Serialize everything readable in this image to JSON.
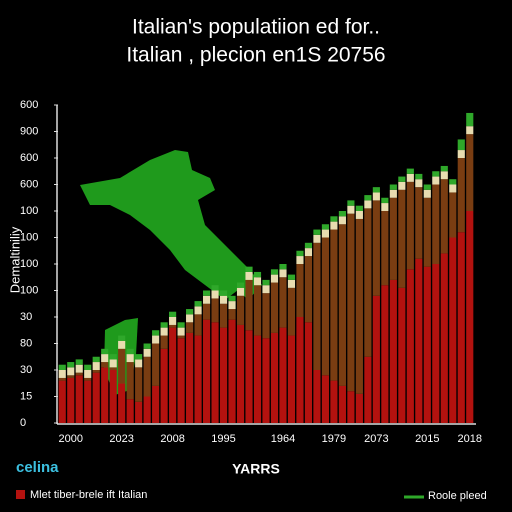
{
  "chart_data": {
    "type": "stacked_bar",
    "title": [
      "Italian's populatiion ed for..",
      "Italian , plecion en1S 20756"
    ],
    "ylabel": "Demaltiniliy",
    "xlabel": "YARRS",
    "logo": "celina",
    "ylim": [
      0,
      12
    ],
    "yticks": [
      0,
      {
        "value": 1,
        "label": "15"
      },
      {
        "value": 2,
        "label": "30"
      },
      {
        "value": 3,
        "label": "80"
      },
      {
        "value": 4,
        "label": "30"
      },
      {
        "value": 5,
        "label": "100"
      },
      {
        "value": 6,
        "label": "100"
      },
      {
        "value": 7,
        "label": "100"
      },
      {
        "value": 8,
        "label": "100"
      },
      {
        "value": 9,
        "label": "600"
      },
      {
        "value": 10,
        "label": "600"
      },
      {
        "value": 11,
        "label": "900"
      },
      {
        "value": 12,
        "label": "600"
      }
    ],
    "categories": [
      null,
      "2000",
      null,
      null,
      null,
      null,
      null,
      "2023",
      null,
      null,
      null,
      null,
      null,
      "2008",
      null,
      null,
      null,
      null,
      null,
      "1995",
      null,
      null,
      null,
      null,
      null,
      null,
      "1964",
      null,
      null,
      null,
      null,
      null,
      "1979",
      null,
      null,
      null,
      null,
      "2073",
      null,
      null,
      null,
      null,
      null,
      "2015",
      null,
      null,
      null,
      null,
      "2018"
    ],
    "series": [
      {
        "name": "Mlet tiber-brele ift Italian",
        "color": "#b3120f",
        "values": [
          1.6,
          1.7,
          1.8,
          1.6,
          1.9,
          2.1,
          2.0,
          1.5,
          0.9,
          0.8,
          1.0,
          1.4,
          2.8,
          3.6,
          3.2,
          3.4,
          3.3,
          3.9,
          3.8,
          3.6,
          3.9,
          3.7,
          3.5,
          3.3,
          3.2,
          3.4,
          3.6,
          3.3,
          4.0,
          3.8,
          2.0,
          1.8,
          1.6,
          1.4,
          1.2,
          1.1,
          2.5,
          4.8,
          5.2,
          5.4,
          5.1,
          5.8,
          6.2,
          5.9,
          6.0,
          6.4,
          7.0,
          7.2,
          8.0
        ]
      },
      {
        "color": "#7a3d12",
        "values": [
          0.1,
          0.1,
          0.1,
          0.1,
          0.1,
          0.2,
          0.1,
          1.3,
          1.4,
          1.3,
          1.5,
          1.6,
          0.5,
          0.1,
          0.1,
          0.4,
          0.8,
          0.6,
          0.9,
          0.9,
          0.4,
          1.1,
          1.9,
          1.9,
          1.7,
          1.9,
          1.9,
          1.8,
          2.0,
          2.5,
          4.8,
          5.2,
          5.7,
          6.1,
          6.7,
          6.6,
          5.6,
          3.6,
          2.8,
          3.1,
          3.7,
          3.3,
          2.7,
          2.6,
          3.0,
          2.8,
          1.7,
          2.8,
          2.9
        ]
      },
      {
        "color": "#e8dcb0",
        "values": [
          0.3,
          0.3,
          0.3,
          0.3,
          0.3,
          0.3,
          0.3,
          0.3,
          0.3,
          0.3,
          0.3,
          0.3,
          0.3,
          0.3,
          0.3,
          0.3,
          0.3,
          0.3,
          0.3,
          0.3,
          0.3,
          0.3,
          0.3,
          0.3,
          0.3,
          0.3,
          0.3,
          0.3,
          0.3,
          0.3,
          0.3,
          0.3,
          0.3,
          0.3,
          0.3,
          0.3,
          0.3,
          0.3,
          0.3,
          0.3,
          0.3,
          0.3,
          0.3,
          0.3,
          0.3,
          0.3,
          0.3,
          0.3,
          0.3
        ]
      },
      {
        "name": "Roole pleed",
        "color": "#2fa82a",
        "values": [
          0.2,
          0.2,
          0.2,
          0.2,
          0.2,
          0.2,
          0.2,
          0.2,
          0.2,
          0.2,
          0.2,
          0.2,
          0.2,
          0.2,
          0.2,
          0.2,
          0.2,
          0.2,
          0.2,
          0.2,
          0.2,
          0.2,
          0.2,
          0.2,
          0.2,
          0.2,
          0.2,
          0.2,
          0.2,
          0.2,
          0.2,
          0.2,
          0.2,
          0.2,
          0.2,
          0.2,
          0.2,
          0.2,
          0.2,
          0.2,
          0.2,
          0.2,
          0.2,
          0.2,
          0.2,
          0.2,
          0.2,
          0.4,
          0.5
        ]
      }
    ]
  }
}
